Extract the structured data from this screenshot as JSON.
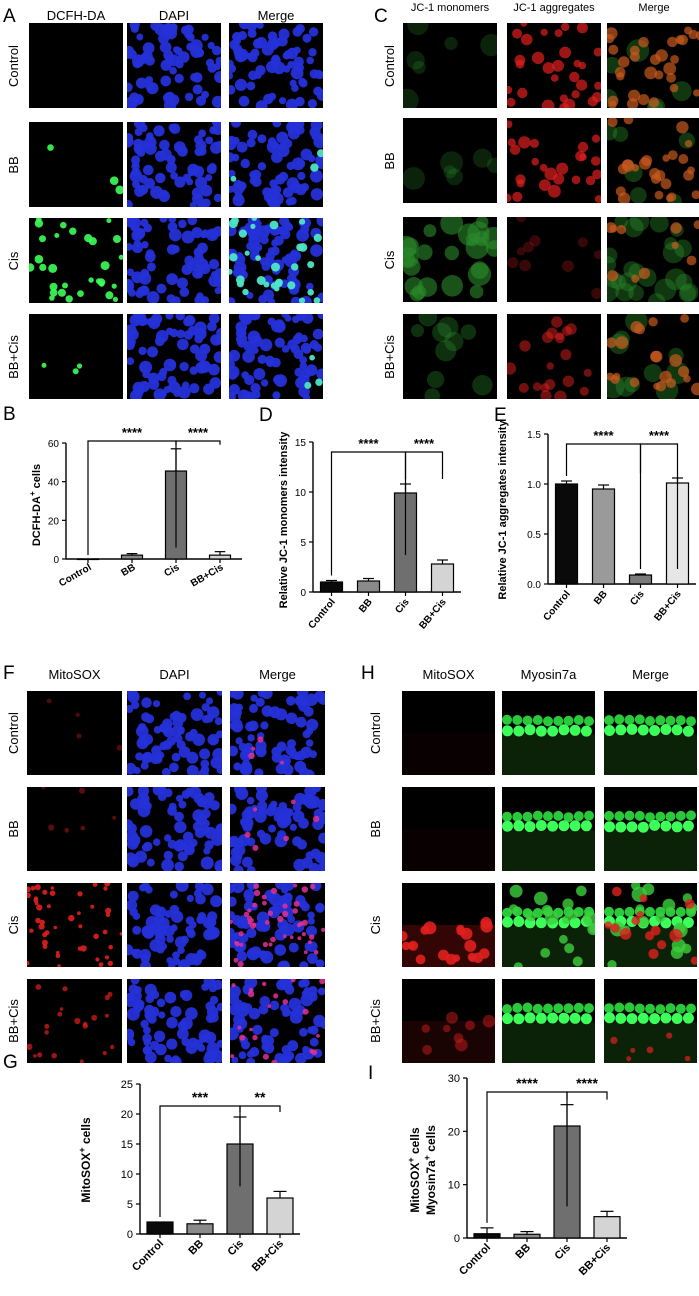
{
  "panel_letters": [
    "A",
    "B",
    "C",
    "D",
    "E",
    "F",
    "G",
    "H",
    "I"
  ],
  "colors": {
    "black": "#0a0a0a",
    "gray": "#7a7a7a",
    "light": "#cfcfcf",
    "white": "#f2f2f2",
    "dapi": "#2530d8",
    "green": "#3cff5a",
    "red": "#e0201e"
  },
  "panelA": {
    "columns": [
      "DCFH-DA",
      "DAPI",
      "Merge"
    ],
    "rows": [
      "Control",
      "BB",
      "Cis",
      "BB+Cis"
    ]
  },
  "panelC": {
    "columns": [
      "JC-1 monomers",
      "JC-1 aggregates",
      "Merge"
    ],
    "rows": [
      "Control",
      "BB",
      "Cis",
      "BB+Cis"
    ]
  },
  "panelF": {
    "columns": [
      "MitoSOX",
      "DAPI",
      "Merge"
    ],
    "rows": [
      "Control",
      "BB",
      "Cis",
      "BB+Cis"
    ]
  },
  "panelH": {
    "columns": [
      "MitoSOX",
      "Myosin7a",
      "Merge"
    ],
    "rows": [
      "Control",
      "BB",
      "Cis",
      "BB+Cis"
    ]
  },
  "chart_data": [
    {
      "id": "B",
      "type": "bar",
      "categories": [
        "Control",
        "BB",
        "Cis",
        "BB+Cis"
      ],
      "values": [
        0,
        2,
        45.5,
        2
      ],
      "errors": [
        0,
        0.8,
        11.5,
        1.8
      ],
      "ylabel": "DCFH-DA⁺ cells",
      "ylim": [
        0,
        60
      ],
      "yticks": [
        "0",
        "20",
        "40",
        "60"
      ],
      "significance": [
        {
          "pair": [
            "Control",
            "Cis"
          ],
          "label": "****"
        },
        {
          "pair": [
            "Cis",
            "BB+Cis"
          ],
          "label": "****"
        }
      ]
    },
    {
      "id": "D",
      "type": "bar",
      "categories": [
        "Control",
        "BB",
        "Cis",
        "BB+Cis"
      ],
      "values": [
        1,
        1.1,
        9.9,
        2.8
      ],
      "errors": [
        0.15,
        0.25,
        0.9,
        0.4
      ],
      "ylabel": "Relative JC-1 monomers intensity",
      "ylim": [
        0,
        15
      ],
      "yticks": [
        "0",
        "5",
        "10",
        "15"
      ],
      "significance": [
        {
          "pair": [
            "Control",
            "Cis"
          ],
          "label": "****"
        },
        {
          "pair": [
            "Cis",
            "BB+Cis"
          ],
          "label": "****"
        }
      ]
    },
    {
      "id": "E",
      "type": "bar",
      "categories": [
        "Control",
        "BB",
        "Cis",
        "BB+Cis"
      ],
      "values": [
        1.0,
        0.95,
        0.09,
        1.01
      ],
      "errors": [
        0.03,
        0.04,
        0.01,
        0.05
      ],
      "ylabel": "Relative JC-1 aggregates intensity",
      "ylim": [
        0,
        1.5
      ],
      "yticks": [
        "0.0",
        "0.5",
        "1.0",
        "1.5"
      ],
      "significance": [
        {
          "pair": [
            "Control",
            "Cis"
          ],
          "label": "****"
        },
        {
          "pair": [
            "Cis",
            "BB+Cis"
          ],
          "label": "****"
        }
      ]
    },
    {
      "id": "G",
      "type": "bar",
      "categories": [
        "Control",
        "BB",
        "Cis",
        "BB+Cis"
      ],
      "values": [
        2,
        1.7,
        15,
        6
      ],
      "errors": [
        0,
        0.6,
        4.5,
        1.1
      ],
      "ylabel": "MitoSOX⁺ cells",
      "ylim": [
        0,
        25
      ],
      "yticks": [
        "0",
        "5",
        "10",
        "15",
        "20",
        "25"
      ],
      "significance": [
        {
          "pair": [
            "Control",
            "Cis"
          ],
          "label": "***"
        },
        {
          "pair": [
            "Cis",
            "BB+Cis"
          ],
          "label": "**"
        }
      ]
    },
    {
      "id": "I",
      "type": "bar",
      "categories": [
        "Control",
        "BB",
        "Cis",
        "BB+Cis"
      ],
      "values": [
        0.8,
        0.7,
        21,
        4
      ],
      "errors": [
        1.1,
        0.5,
        4,
        1
      ],
      "ylabel": "MitoSOX⁺ cells",
      "ylabel2": "Myosin7a⁺ cells",
      "ylim": [
        0,
        30
      ],
      "yticks": [
        "0",
        "10",
        "20",
        "30"
      ],
      "significance": [
        {
          "pair": [
            "Control",
            "Cis"
          ],
          "label": "****"
        },
        {
          "pair": [
            "Cis",
            "BB+Cis"
          ],
          "label": "****"
        }
      ]
    }
  ]
}
